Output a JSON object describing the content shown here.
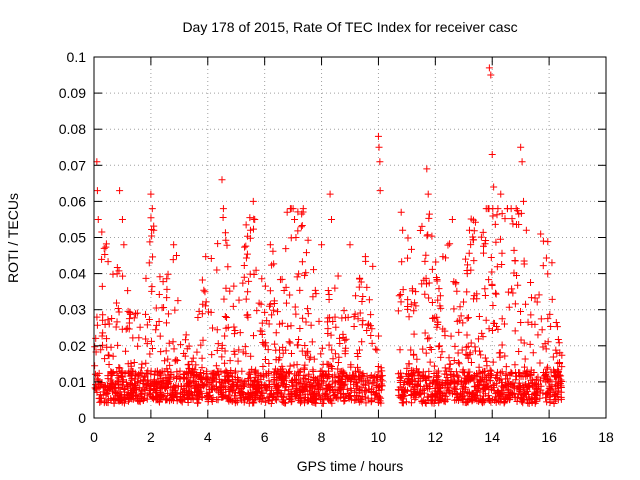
{
  "chart_data": {
    "type": "scatter",
    "title": "Day 178 of 2015, Rate Of TEC Index for receiver casc",
    "xlabel": "GPS time / hours",
    "ylabel": "ROTI / TECUs",
    "xlim": [
      0,
      18
    ],
    "ylim": [
      0,
      0.1
    ],
    "grid": true,
    "marker": "+",
    "color": "#ff0000",
    "x_ticks": [
      0,
      2,
      4,
      6,
      8,
      10,
      12,
      14,
      16,
      18
    ],
    "x_tick_labels": [
      "0",
      "2",
      "4",
      "6",
      "8",
      "10",
      "12",
      "14",
      "16",
      "18"
    ],
    "y_ticks": [
      0,
      0.01,
      0.02,
      0.03,
      0.04,
      0.05,
      0.06,
      0.07,
      0.08,
      0.09,
      0.1
    ],
    "y_tick_labels": [
      "0",
      "0.01",
      "0.02",
      "0.03",
      "0.04",
      "0.05",
      "0.06",
      "0.07",
      "0.08",
      "0.09",
      "0.1"
    ],
    "data_gap_hours": [
      10.15,
      10.7
    ],
    "series": [
      {
        "name": "ROTI",
        "x": [
          0.1,
          0.12,
          0.15,
          0.9,
          1.0,
          1.05,
          2.0,
          2.05,
          2.1,
          2.8,
          2.9,
          4.5,
          4.55,
          5.5,
          5.6,
          5.65,
          6.2,
          7.0,
          7.05,
          7.1,
          8.3,
          8.35,
          8.0,
          9.0,
          9.8,
          10.0,
          10.02,
          10.05,
          10.06,
          10.8,
          10.85,
          11.7,
          11.75,
          12.6,
          13.2,
          13.9,
          13.95,
          14.0,
          14.05,
          14.2,
          14.3,
          15.0,
          15.05,
          15.1,
          15.2,
          15.8,
          16.1
        ],
        "y": [
          0.071,
          0.063,
          0.055,
          0.063,
          0.055,
          0.048,
          0.062,
          0.058,
          0.052,
          0.048,
          0.045,
          0.066,
          0.058,
          0.052,
          0.06,
          0.055,
          0.048,
          0.058,
          0.055,
          0.05,
          0.062,
          0.055,
          0.048,
          0.048,
          0.042,
          0.078,
          0.075,
          0.071,
          0.063,
          0.057,
          0.052,
          0.069,
          0.062,
          0.055,
          0.052,
          0.097,
          0.095,
          0.073,
          0.064,
          0.058,
          0.062,
          0.075,
          0.071,
          0.06,
          0.052,
          0.049,
          0.043
        ]
      }
    ]
  }
}
